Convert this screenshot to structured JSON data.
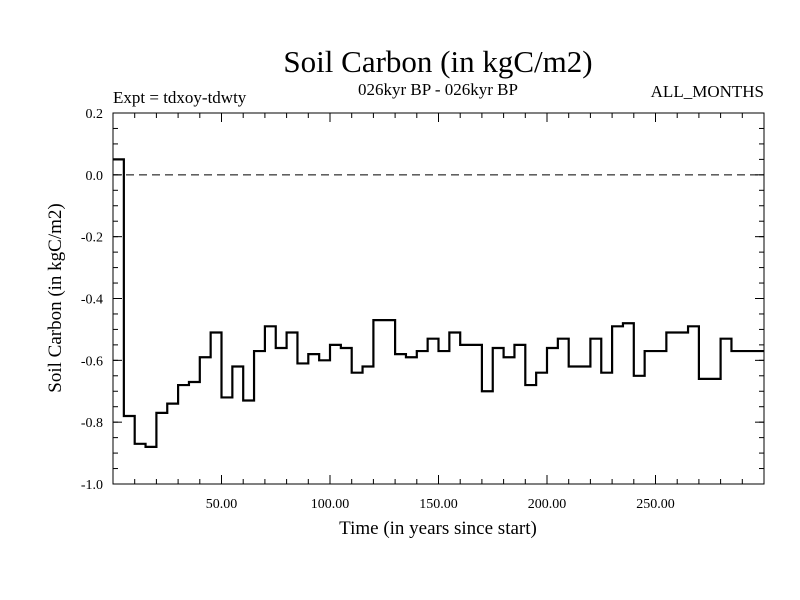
{
  "chart_data": {
    "type": "line",
    "title": "Soil Carbon (in kgC/m2)",
    "subtitle": "026kyr BP - 026kyr BP",
    "left_annotation": "Expt = tdxoy-tdwty",
    "right_annotation": "ALL_MONTHS",
    "xlabel": "Time (in years since start)",
    "ylabel": "Soil Carbon (in kgC/m2)",
    "xlim": [
      0,
      300
    ],
    "ylim": [
      -1.0,
      0.2
    ],
    "xticks": [
      50,
      100,
      150,
      200,
      250
    ],
    "xtick_labels": [
      "50.00",
      "100.00",
      "150.00",
      "200.00",
      "250.00"
    ],
    "yticks": [
      0.2,
      0.0,
      -0.2,
      -0.4,
      -0.6,
      -0.8,
      -1.0
    ],
    "ytick_labels": [
      "0.2",
      "0.0",
      "-0.2",
      "-0.4",
      "-0.6",
      "-0.8",
      "-1.0"
    ],
    "reference_line": {
      "y": 0.0,
      "style": "dashed"
    },
    "step": true,
    "series": [
      {
        "x": [
          0,
          5,
          10,
          15,
          20,
          25,
          30,
          35,
          40,
          45,
          50,
          55,
          60,
          65,
          70,
          75,
          80,
          85,
          90,
          95,
          100,
          105,
          110,
          115,
          120,
          125,
          130,
          135,
          140,
          145,
          150,
          155,
          160,
          165,
          170,
          175,
          180,
          185,
          190,
          195,
          200,
          205,
          210,
          215,
          220,
          225,
          230,
          235,
          240,
          245,
          250,
          255,
          260,
          265,
          270,
          275,
          280,
          285,
          290,
          295,
          300
        ],
        "values": [
          0.05,
          -0.78,
          -0.87,
          -0.88,
          -0.77,
          -0.74,
          -0.68,
          -0.67,
          -0.59,
          -0.51,
          -0.72,
          -0.62,
          -0.73,
          -0.57,
          -0.49,
          -0.56,
          -0.51,
          -0.61,
          -0.58,
          -0.6,
          -0.55,
          -0.56,
          -0.64,
          -0.62,
          -0.47,
          -0.47,
          -0.58,
          -0.59,
          -0.57,
          -0.53,
          -0.57,
          -0.51,
          -0.55,
          -0.55,
          -0.7,
          -0.56,
          -0.59,
          -0.55,
          -0.68,
          -0.64,
          -0.56,
          -0.53,
          -0.62,
          -0.62,
          -0.53,
          -0.64,
          -0.49,
          -0.48,
          -0.65,
          -0.57,
          -0.57,
          -0.51,
          -0.51,
          -0.49,
          -0.66,
          -0.66,
          -0.53,
          -0.57,
          -0.57,
          -0.57,
          -0.57
        ]
      }
    ]
  }
}
